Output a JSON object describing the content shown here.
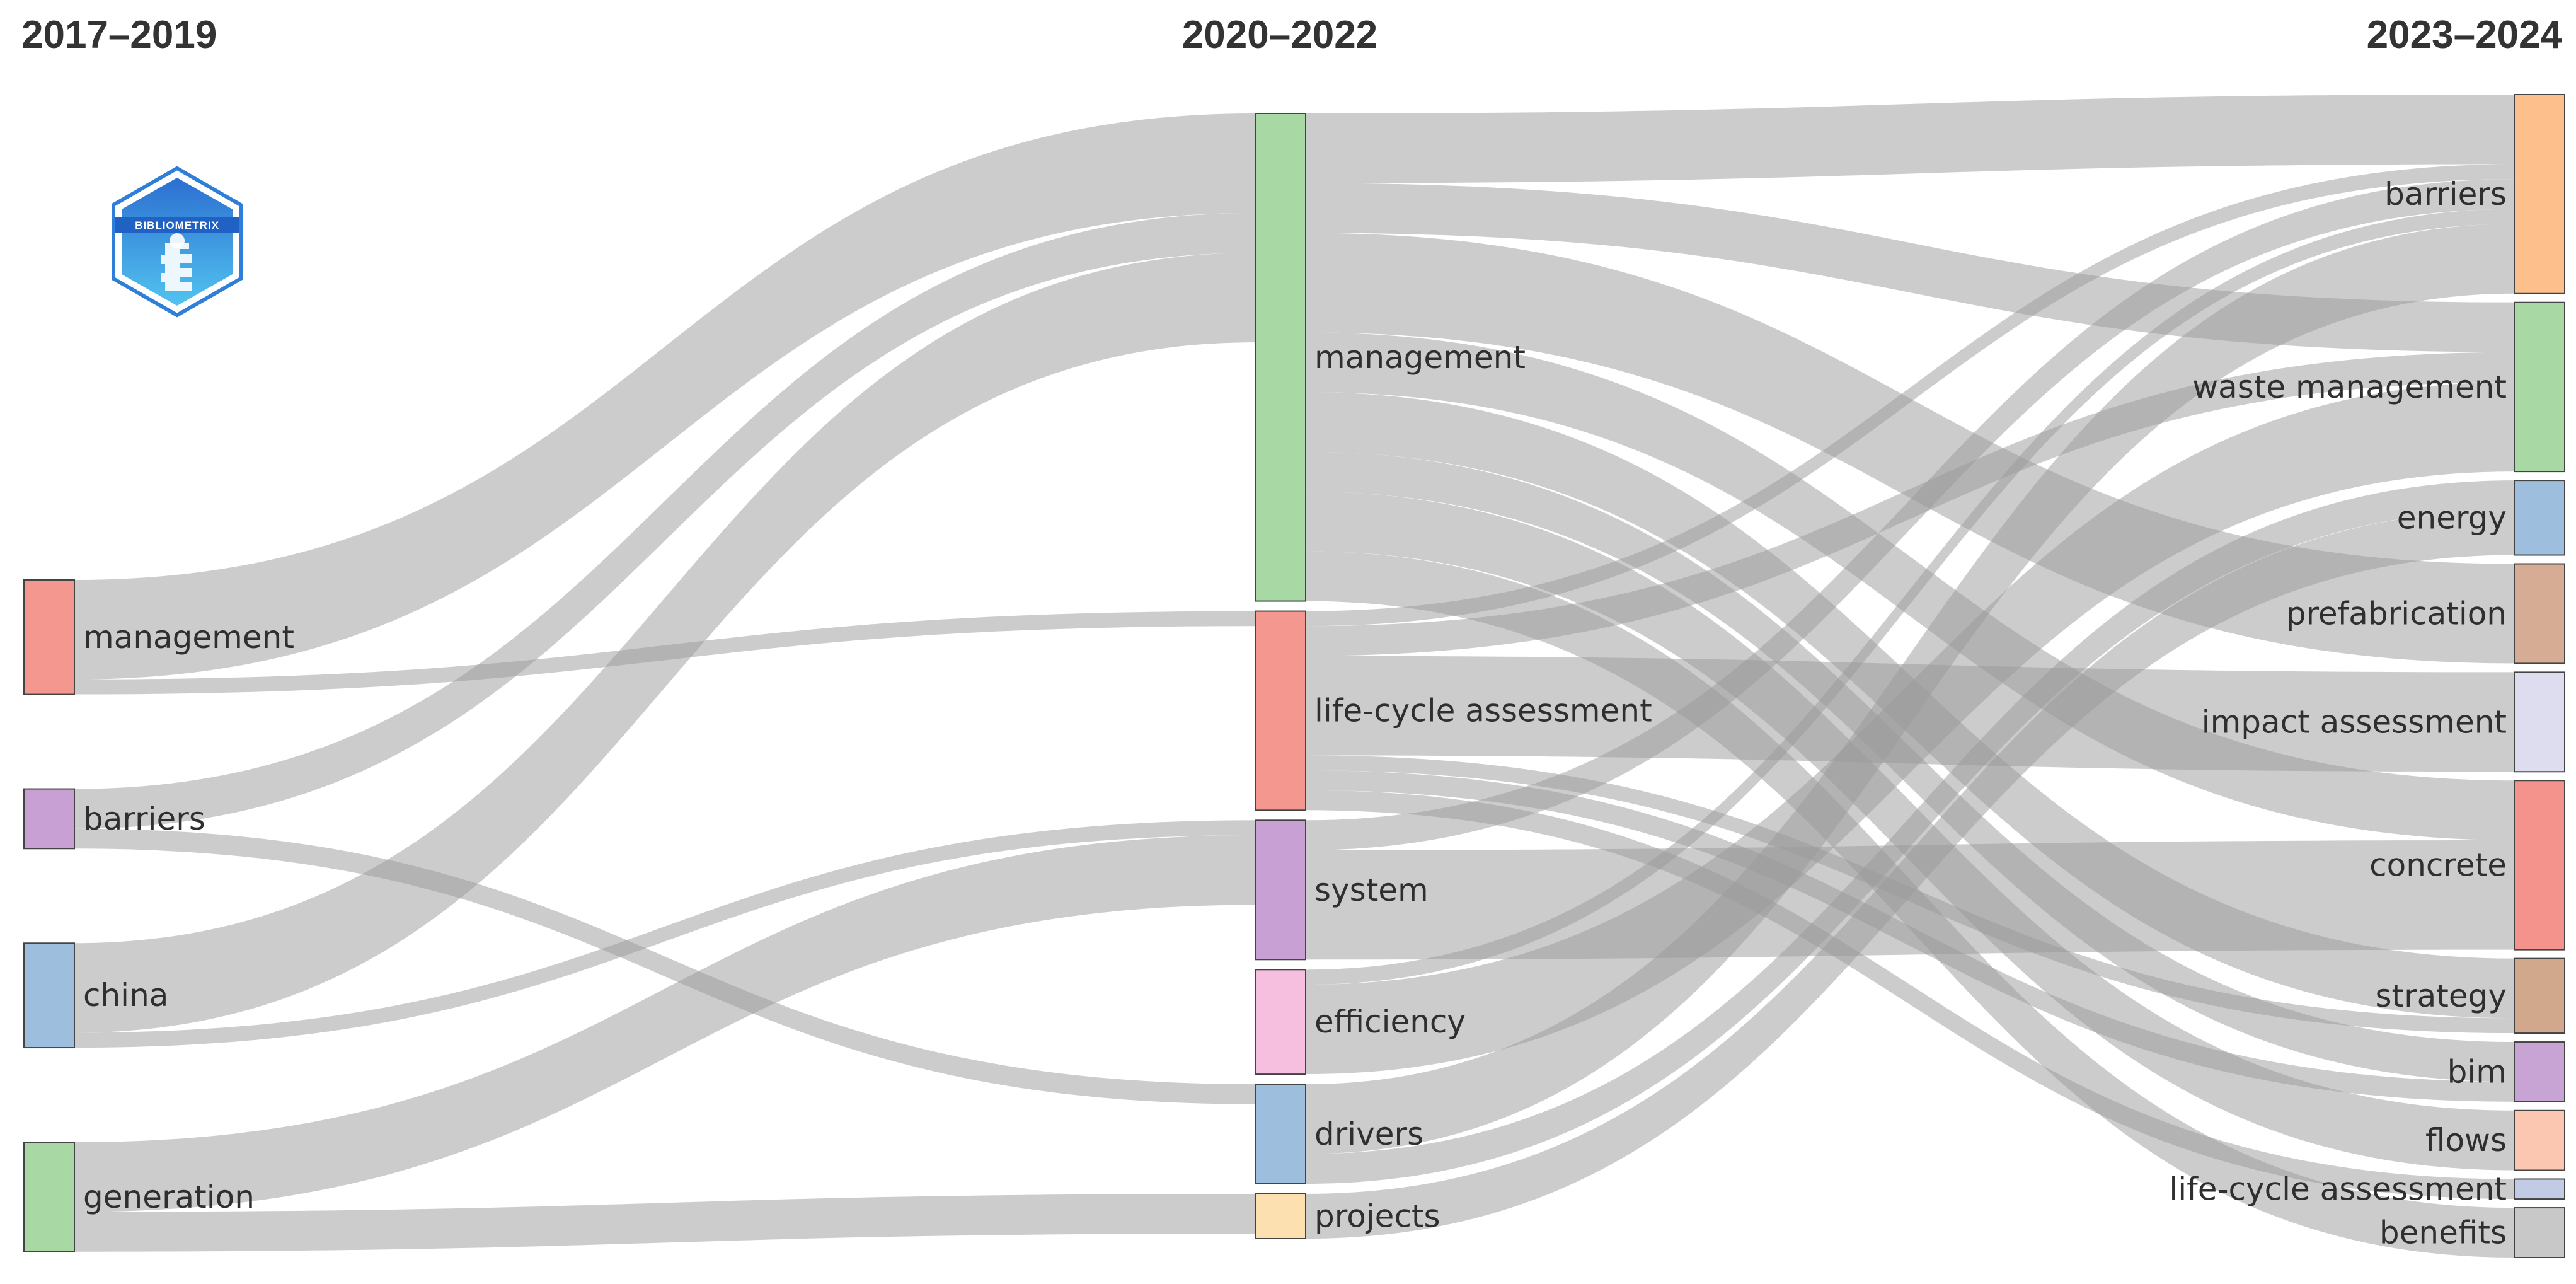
{
  "logo": {
    "text": "BIBLIOMETRIX"
  },
  "periods": [
    "2017–2019",
    "2020–2022",
    "2023–2024"
  ],
  "colors": {
    "link": "#9a9a9a",
    "salmon": "#f4978e",
    "purple": "#c9a0d4",
    "blue": "#9dbedd",
    "green": "#a8d8a4",
    "pink": "#f7bfdf",
    "cream": "#fde0b0",
    "orange": "#fdbf8c",
    "tan": "#d6ad94",
    "lavender": "#dedcef",
    "red": "#f4928c",
    "brown": "#d2a88d",
    "violet": "#c8a4d4",
    "peach": "#fcc7b0",
    "periwinkle": "#c2cbe6",
    "grey": "#c8c8c8"
  },
  "nodes": [
    {
      "id": "m19",
      "column": 0,
      "label": "management",
      "color": "salmon"
    },
    {
      "id": "b19",
      "column": 0,
      "label": "barriers",
      "color": "purple"
    },
    {
      "id": "c19",
      "column": 0,
      "label": "china",
      "color": "blue"
    },
    {
      "id": "g19",
      "column": 0,
      "label": "generation",
      "color": "green"
    },
    {
      "id": "m22",
      "column": 1,
      "label": "management",
      "color": "green"
    },
    {
      "id": "l22",
      "column": 1,
      "label": "life-cycle assessment",
      "color": "salmon"
    },
    {
      "id": "s22",
      "column": 1,
      "label": "system",
      "color": "purple"
    },
    {
      "id": "e22",
      "column": 1,
      "label": "efficiency",
      "color": "pink"
    },
    {
      "id": "d22",
      "column": 1,
      "label": "drivers",
      "color": "blue"
    },
    {
      "id": "p22",
      "column": 1,
      "label": "projects",
      "color": "cream"
    },
    {
      "id": "b24",
      "column": 2,
      "label": "barriers",
      "color": "orange"
    },
    {
      "id": "w24",
      "column": 2,
      "label": "waste management",
      "color": "green"
    },
    {
      "id": "en24",
      "column": 2,
      "label": "energy",
      "color": "blue"
    },
    {
      "id": "pf24",
      "column": 2,
      "label": "prefabrication",
      "color": "tan"
    },
    {
      "id": "ia24",
      "column": 2,
      "label": "impact assessment",
      "color": "lavender"
    },
    {
      "id": "co24",
      "column": 2,
      "label": "concrete",
      "color": "red"
    },
    {
      "id": "st24",
      "column": 2,
      "label": "strategy",
      "color": "brown"
    },
    {
      "id": "bi24",
      "column": 2,
      "label": "bim",
      "color": "violet"
    },
    {
      "id": "fl24",
      "column": 2,
      "label": "flows",
      "color": "peach"
    },
    {
      "id": "lc24",
      "column": 2,
      "label": "life-cycle assessment",
      "color": "periwinkle"
    },
    {
      "id": "be24",
      "column": 2,
      "label": "benefits",
      "color": "grey"
    }
  ],
  "links": [
    {
      "source": "m19",
      "target": "m22",
      "value": 20
    },
    {
      "source": "m19",
      "target": "l22",
      "value": 3
    },
    {
      "source": "b19",
      "target": "m22",
      "value": 8
    },
    {
      "source": "b19",
      "target": "d22",
      "value": 4
    },
    {
      "source": "c19",
      "target": "m22",
      "value": 18
    },
    {
      "source": "c19",
      "target": "s22",
      "value": 3
    },
    {
      "source": "g19",
      "target": "s22",
      "value": 14
    },
    {
      "source": "g19",
      "target": "p22",
      "value": 8
    },
    {
      "source": "m22",
      "target": "b24",
      "value": 14
    },
    {
      "source": "m22",
      "target": "w24",
      "value": 10
    },
    {
      "source": "m22",
      "target": "pf24",
      "value": 20
    },
    {
      "source": "m22",
      "target": "co24",
      "value": 12
    },
    {
      "source": "m22",
      "target": "st24",
      "value": 12
    },
    {
      "source": "m22",
      "target": "fl24",
      "value": 12
    },
    {
      "source": "m22",
      "target": "be24",
      "value": 10
    },
    {
      "source": "m22",
      "target": "bi24",
      "value": 8
    },
    {
      "source": "l22",
      "target": "b24",
      "value": 3
    },
    {
      "source": "l22",
      "target": "w24",
      "value": 6
    },
    {
      "source": "l22",
      "target": "ia24",
      "value": 20
    },
    {
      "source": "l22",
      "target": "bi24",
      "value": 4
    },
    {
      "source": "l22",
      "target": "lc24",
      "value": 4
    },
    {
      "source": "l22",
      "target": "st24",
      "value": 3
    },
    {
      "source": "s22",
      "target": "b24",
      "value": 6
    },
    {
      "source": "s22",
      "target": "co24",
      "value": 22
    },
    {
      "source": "e22",
      "target": "w24",
      "value": 18
    },
    {
      "source": "e22",
      "target": "b24",
      "value": 3
    },
    {
      "source": "d22",
      "target": "b24",
      "value": 14
    },
    {
      "source": "d22",
      "target": "en24",
      "value": 6
    },
    {
      "source": "p22",
      "target": "en24",
      "value": 9
    }
  ]
}
